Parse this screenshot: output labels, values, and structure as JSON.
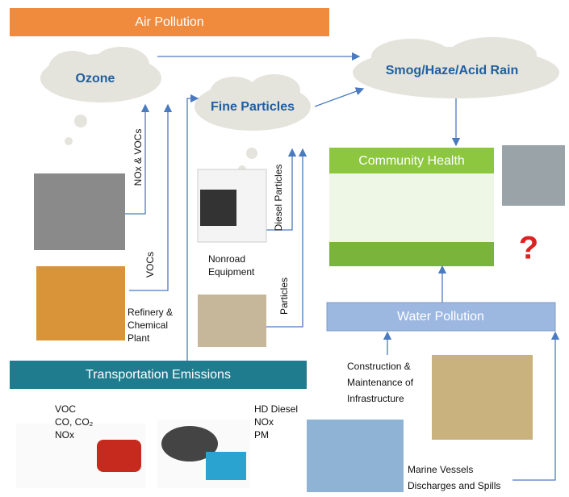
{
  "header": {
    "title": "Air Pollution"
  },
  "clouds": [
    {
      "label": "Ozone"
    },
    {
      "label": "Fine Particles"
    },
    {
      "label": "Smog/Haze/Acid Rain"
    }
  ],
  "arrow_labels": [
    "NOx & VOCs",
    "VOCs",
    "Diesel Particles",
    "Particles"
  ],
  "sources": [
    {
      "lines": [
        "Nonroad",
        "Equipment"
      ]
    },
    {
      "lines": [
        "Refinery &",
        "Chemical",
        "Plant"
      ]
    },
    {
      "lines": [
        "Construction &",
        "Maintenance of",
        "Infrastructure"
      ]
    },
    {
      "lines": [
        "VOC",
        "CO, CO₂",
        "NOx"
      ]
    },
    {
      "lines": [
        "HD Diesel",
        "NOx",
        "PM"
      ]
    },
    {
      "lines": [
        "Marine Vessels",
        "Discharges and Spills"
      ]
    }
  ],
  "boxes": {
    "community_health": "Community Health",
    "water_pollution": "Water Pollution",
    "transportation": "Transportation Emissions"
  }
}
